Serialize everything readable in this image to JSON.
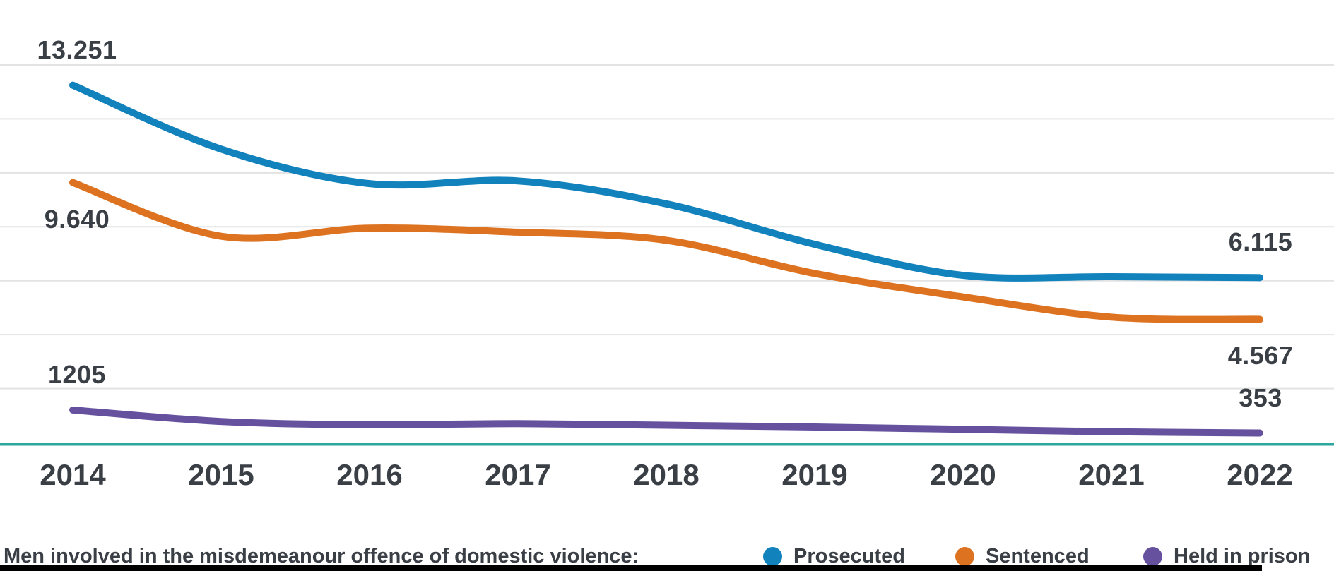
{
  "chart_data": {
    "type": "line",
    "x": [
      "2014",
      "2015",
      "2016",
      "2017",
      "2018",
      "2019",
      "2020",
      "2021",
      "2022"
    ],
    "series": [
      {
        "name": "Prosecuted",
        "color": "#1182BC",
        "values": [
          13251,
          10880,
          9600,
          9700,
          8850,
          7350,
          6200,
          6150,
          6115
        ],
        "start_label": {
          "text": "13.251",
          "position": "above"
        },
        "end_label": {
          "text": "6.115",
          "position": "above"
        }
      },
      {
        "name": "Sentenced",
        "color": "#DD7321",
        "values": [
          9640,
          7650,
          7950,
          7800,
          7500,
          6270,
          5400,
          4650,
          4567
        ],
        "start_label": {
          "text": "9.640",
          "position": "below"
        },
        "end_label": {
          "text": "4.567",
          "position": "below"
        }
      },
      {
        "name": "Held in prison",
        "color": "#66519E",
        "values": [
          1205,
          780,
          660,
          700,
          640,
          575,
          490,
          400,
          353
        ],
        "start_label": {
          "text": "1205",
          "position": "above"
        },
        "end_label": {
          "text": "353",
          "position": "above"
        }
      }
    ],
    "title": "",
    "xlabel": "",
    "ylabel": "",
    "ylim": [
      0,
      14000
    ],
    "grid": true,
    "grid_step": 2000,
    "legend_position": "bottom"
  },
  "legend": {
    "caption": "Men involved in the misdemeanour offence of domestic violence:"
  },
  "colors": {
    "text": "#3A3F46",
    "grid": "#E3E3E3",
    "baseline": "#2DA69B",
    "background": "#FFFFFF",
    "bottom_bar": "#000000"
  }
}
